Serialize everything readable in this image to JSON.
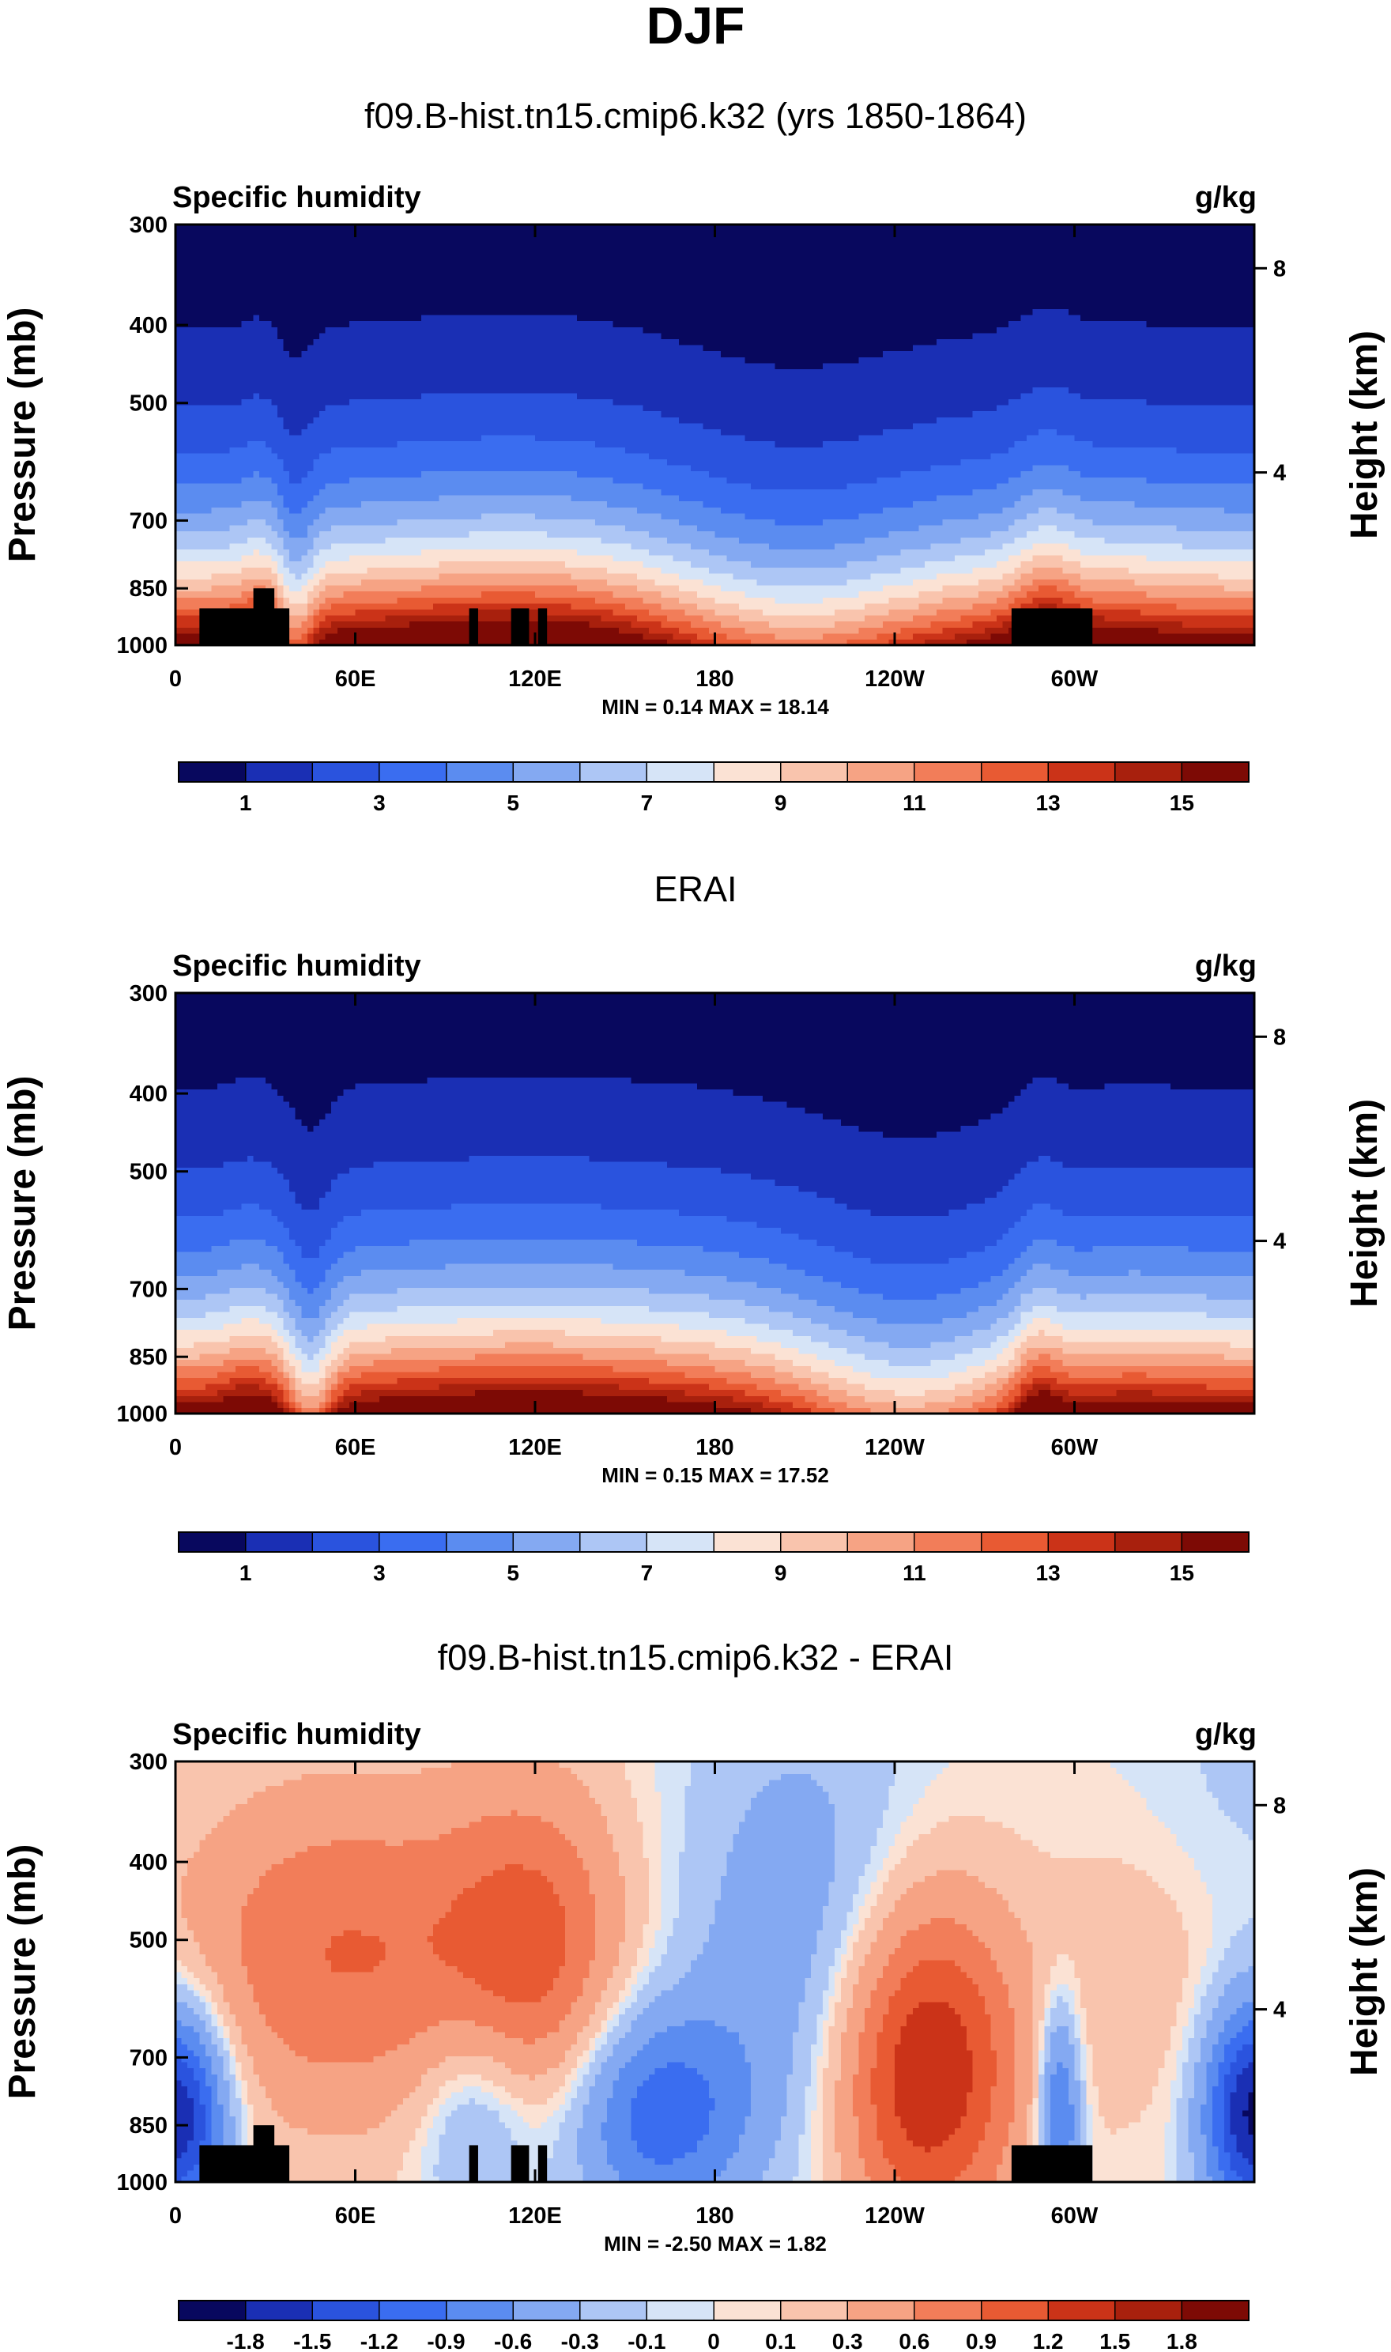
{
  "figure": {
    "title": "DJF"
  },
  "chart_data": [
    {
      "type": "heatmap",
      "title": "f09.B-hist.tn15.cmip6.k32 (yrs 1850-1864)",
      "variable_label": "Specific humidity",
      "units_label": "g/kg",
      "ylabel": "Pressure (mb)",
      "y2label": "Height (km)",
      "x_ticks": [
        "0",
        "60E",
        "120E",
        "180",
        "120W",
        "60W"
      ],
      "y_ticks": [
        "300",
        "400",
        "500",
        "700",
        "850",
        "1000"
      ],
      "y2_ticks": [
        "8",
        "4"
      ],
      "stats": "MIN =   0.14  MAX =  18.14",
      "levels": [
        1,
        2,
        3,
        4,
        5,
        6,
        7,
        8,
        9,
        10,
        11,
        12,
        13,
        14,
        15
      ],
      "colorbar_labels": [
        "1",
        "3",
        "5",
        "7",
        "9",
        "11",
        "13",
        "15"
      ],
      "min": 0.14,
      "max": 18.14,
      "field": "model",
      "topography_masked": true
    },
    {
      "type": "heatmap",
      "title": "ERAI",
      "variable_label": "Specific humidity",
      "units_label": "g/kg",
      "ylabel": "Pressure (mb)",
      "y2label": "Height (km)",
      "x_ticks": [
        "0",
        "60E",
        "120E",
        "180",
        "120W",
        "60W"
      ],
      "y_ticks": [
        "300",
        "400",
        "500",
        "700",
        "850",
        "1000"
      ],
      "y2_ticks": [
        "8",
        "4"
      ],
      "stats": "MIN =   0.15  MAX =  17.52",
      "levels": [
        1,
        2,
        3,
        4,
        5,
        6,
        7,
        8,
        9,
        10,
        11,
        12,
        13,
        14,
        15
      ],
      "colorbar_labels": [
        "1",
        "3",
        "5",
        "7",
        "9",
        "11",
        "13",
        "15"
      ],
      "min": 0.15,
      "max": 17.52,
      "field": "obs",
      "topography_masked": false
    },
    {
      "type": "heatmap",
      "title": "f09.B-hist.tn15.cmip6.k32 - ERAI",
      "variable_label": "Specific humidity",
      "units_label": "g/kg",
      "ylabel": "Pressure (mb)",
      "y2label": "Height (km)",
      "x_ticks": [
        "0",
        "60E",
        "120E",
        "180",
        "120W",
        "60W"
      ],
      "y_ticks": [
        "300",
        "400",
        "500",
        "700",
        "850",
        "1000"
      ],
      "y2_ticks": [
        "8",
        "4"
      ],
      "stats": "MIN =  -2.50  MAX =   1.82",
      "levels": [
        -1.8,
        -1.5,
        -1.2,
        -0.9,
        -0.6,
        -0.3,
        -0.1,
        0,
        0.1,
        0.3,
        0.6,
        0.9,
        1.2,
        1.5,
        1.8
      ],
      "colorbar_labels": [
        "-1.8",
        "-1.5",
        "-1.2",
        "-0.9",
        "-0.6",
        "-0.3",
        "-0.1",
        "0",
        "0.1",
        "0.3",
        "0.6",
        "0.9",
        "1.2",
        "1.5",
        "1.8"
      ],
      "min": -2.5,
      "max": 1.82,
      "field": "diff",
      "topography_masked": true
    }
  ],
  "palette": [
    "#08085e",
    "#1a2fb4",
    "#2a53de",
    "#3a6df0",
    "#5b8cf0",
    "#84a9f2",
    "#adc6f5",
    "#d6e4f7",
    "#fbe2d4",
    "#f9c4ad",
    "#f6a384",
    "#f27d59",
    "#e85a33",
    "#cb3318",
    "#a8200d",
    "#7d0a05"
  ],
  "mask_color": "#000000"
}
